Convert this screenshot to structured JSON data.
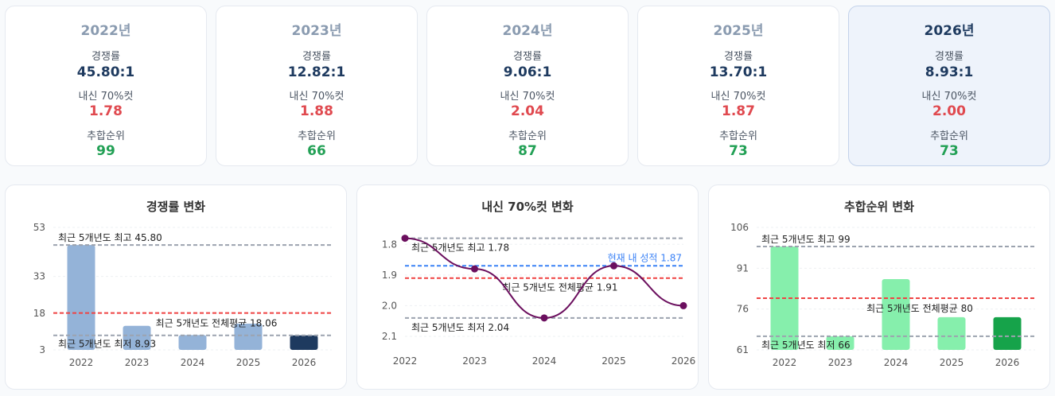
{
  "year_cards": [
    {
      "year": "2022년",
      "comp_label": "경쟁률",
      "comp": "45.80:1",
      "gpa_label": "내신 70%컷",
      "gpa": "1.78",
      "rank_label": "추합순위",
      "rank": "99"
    },
    {
      "year": "2023년",
      "comp_label": "경쟁률",
      "comp": "12.82:1",
      "gpa_label": "내신 70%컷",
      "gpa": "1.88",
      "rank_label": "추합순위",
      "rank": "66"
    },
    {
      "year": "2024년",
      "comp_label": "경쟁률",
      "comp": "9.06:1",
      "gpa_label": "내신 70%컷",
      "gpa": "2.04",
      "rank_label": "추합순위",
      "rank": "87"
    },
    {
      "year": "2025년",
      "comp_label": "경쟁률",
      "comp": "13.70:1",
      "gpa_label": "내신 70%컷",
      "gpa": "1.87",
      "rank_label": "추합순위",
      "rank": "73"
    },
    {
      "year": "2026년",
      "comp_label": "경쟁률",
      "comp": "8.93:1",
      "gpa_label": "내신 70%컷",
      "gpa": "2.00",
      "rank_label": "추합순위",
      "rank": "73"
    }
  ],
  "colors": {
    "bar_past": "#94b3d8",
    "bar_current": "#1e3a5f",
    "bar_rank_past": "#86efac",
    "bar_rank_current": "#16a34a",
    "line": "#6b0f5e",
    "ref_gray": "#9ca3af",
    "ref_red": "#ef4444",
    "ref_blue": "#3b82f6",
    "comp_text": "#1e3a5f",
    "gpa_text": "#e0494f",
    "rank_text": "#22a055"
  },
  "chart_data": [
    {
      "type": "bar",
      "title": "경쟁률 변화",
      "categories": [
        "2022",
        "2023",
        "2024",
        "2025",
        "2026"
      ],
      "values": [
        45.8,
        12.82,
        9.06,
        13.7,
        8.93
      ],
      "ylim": [
        3,
        53
      ],
      "yticks": [
        3,
        18,
        33,
        53
      ],
      "reference_lines": [
        {
          "value": 45.8,
          "label": "최근 5개년도 최고 45.80",
          "color": "gray"
        },
        {
          "value": 18.06,
          "label": "최근 5개년도 전체평균 18.06",
          "color": "red"
        },
        {
          "value": 8.93,
          "label": "최근 5개년도 최저 8.93",
          "color": "gray"
        }
      ],
      "highlight": "2026"
    },
    {
      "type": "line",
      "title": "내신 70%컷 변화",
      "x": [
        "2022",
        "2023",
        "2024",
        "2025",
        "2026"
      ],
      "values": [
        1.78,
        1.88,
        2.04,
        1.87,
        2.0
      ],
      "ylim": [
        1.75,
        2.1
      ],
      "y_inverted": true,
      "yticks": [
        1.8,
        1.9,
        2.0,
        2.1
      ],
      "ytick_labels": [
        "1.8",
        "1.9",
        "2.0",
        "2.1"
      ],
      "reference_lines": [
        {
          "value": 1.78,
          "label": "최근 5개년도 최고 1.78",
          "color": "gray"
        },
        {
          "value": 1.87,
          "label": "현재 내 성적 1.87",
          "color": "blue"
        },
        {
          "value": 1.91,
          "label": "최근 5개년도 전체평균 1.91",
          "color": "red"
        },
        {
          "value": 2.04,
          "label": "최근 5개년도 최저 2.04",
          "color": "gray"
        }
      ]
    },
    {
      "type": "bar",
      "title": "추합순위 변화",
      "categories": [
        "2022",
        "2023",
        "2024",
        "2025",
        "2026"
      ],
      "values": [
        99,
        66,
        87,
        73,
        73
      ],
      "ylim": [
        61,
        106
      ],
      "yticks": [
        61,
        76,
        91,
        106
      ],
      "reference_lines": [
        {
          "value": 99,
          "label": "최근 5개년도 최고 99",
          "color": "gray"
        },
        {
          "value": 80,
          "label": "최근 5개년도 전체평균 80",
          "color": "red"
        },
        {
          "value": 66,
          "label": "최근 5개년도 최저 66",
          "color": "gray"
        }
      ],
      "highlight": "2026"
    }
  ]
}
